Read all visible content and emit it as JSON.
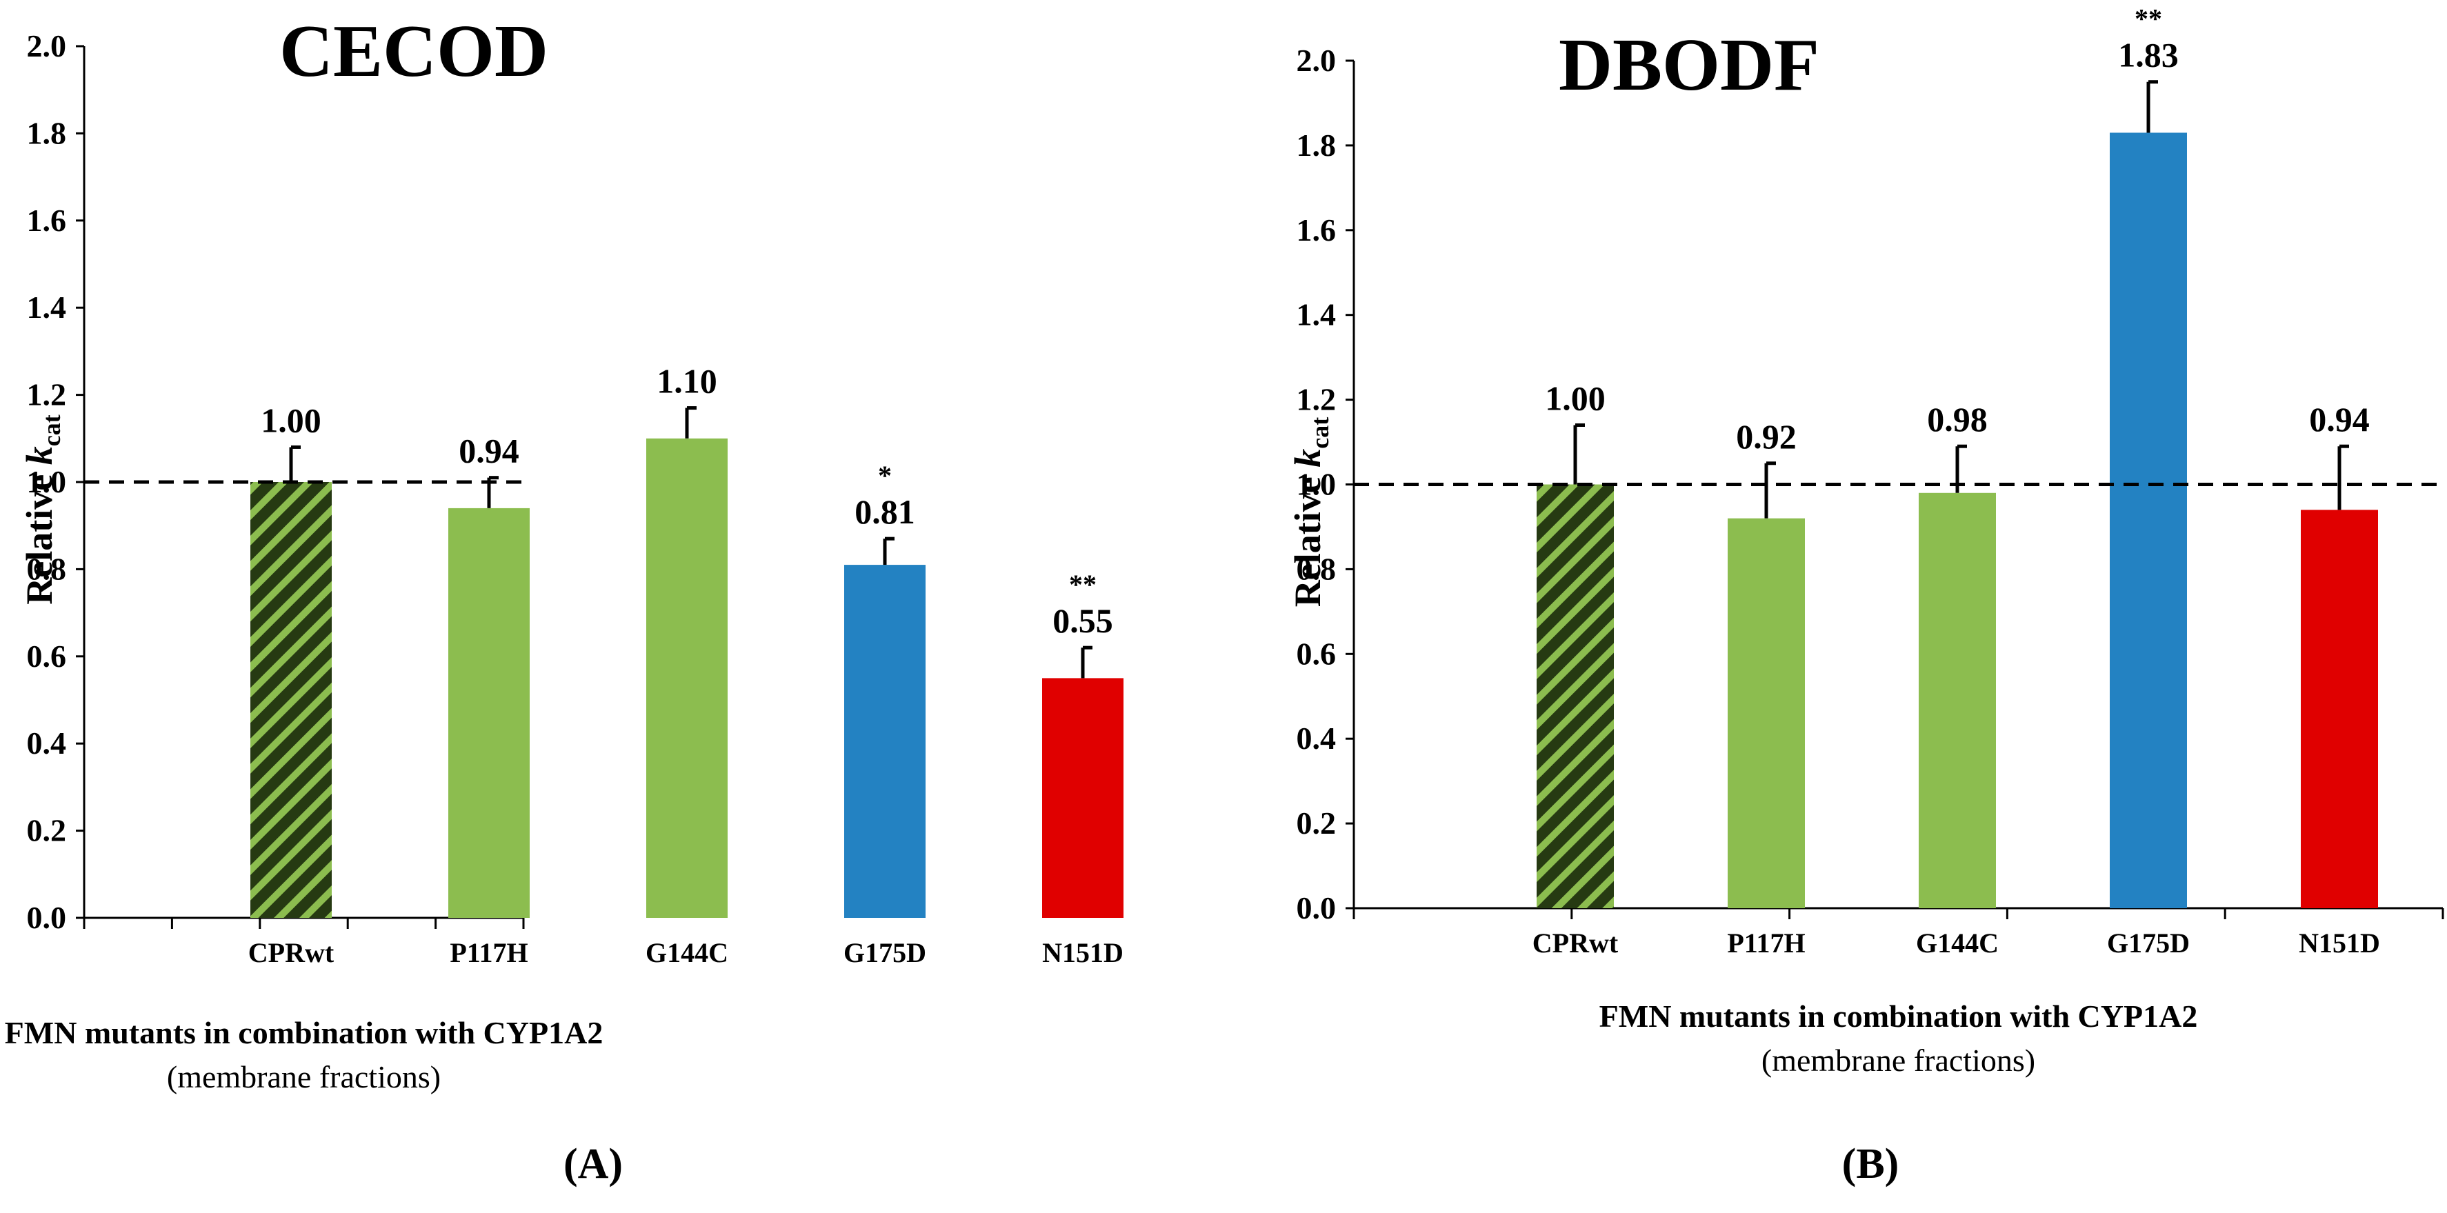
{
  "colors": {
    "green": "#8cbd4f",
    "blue": "#2382c2",
    "red": "#e00000",
    "black": "#000000"
  },
  "chart_data": [
    {
      "type": "bar",
      "panel": "(A)",
      "title": "CECOD",
      "ylabel_main": "Relative ",
      "ylabel_italic": "k",
      "ylabel_sub": "cat",
      "xlabel": "FMN mutants in combination with CYP1A2",
      "xsublabel": "(membrane fractions)",
      "ylim": [
        0,
        2.0
      ],
      "yticks": [
        "0.0",
        "0.2",
        "0.4",
        "0.6",
        "0.8",
        "1.0",
        "1.2",
        "1.4",
        "1.6",
        "1.8",
        "2.0"
      ],
      "reference_line": 1.0,
      "categories": [
        "CPRwt",
        "P117H",
        "G144C",
        "G175D",
        "N151D"
      ],
      "values": [
        1.0,
        0.94,
        1.1,
        0.81,
        0.55
      ],
      "errors": [
        0.08,
        0.07,
        0.07,
        0.06,
        0.07
      ],
      "value_labels": [
        "1.00",
        "0.94",
        "1.10",
        "0.81",
        "0.55"
      ],
      "significance": [
        "",
        "",
        "",
        "*",
        "**"
      ],
      "bar_colors": [
        "hatched-green",
        "green",
        "green",
        "blue",
        "red"
      ]
    },
    {
      "type": "bar",
      "panel": "(B)",
      "title": "DBODF",
      "ylabel_main": "Relative ",
      "ylabel_italic": "k",
      "ylabel_sub": "cat",
      "xlabel": "FMN mutants in combination with CYP1A2",
      "xsublabel": "(membrane  fractions)",
      "ylim": [
        0,
        2.0
      ],
      "yticks": [
        "0.0",
        "0.2",
        "0.4",
        "0.6",
        "0.8",
        "1.0",
        "1.2",
        "1.4",
        "1.6",
        "1.8",
        "2.0"
      ],
      "reference_line": 1.0,
      "categories": [
        "CPRwt",
        "P117H",
        "G144C",
        "G175D",
        "N151D"
      ],
      "values": [
        1.0,
        0.92,
        0.98,
        1.83,
        0.94
      ],
      "errors": [
        0.14,
        0.13,
        0.11,
        0.12,
        0.15
      ],
      "value_labels": [
        "1.00",
        "0.92",
        "0.98",
        "1.83",
        "0.94"
      ],
      "significance": [
        "",
        "",
        "",
        "**",
        ""
      ],
      "bar_colors": [
        "hatched-green",
        "green",
        "green",
        "blue",
        "red"
      ]
    }
  ]
}
